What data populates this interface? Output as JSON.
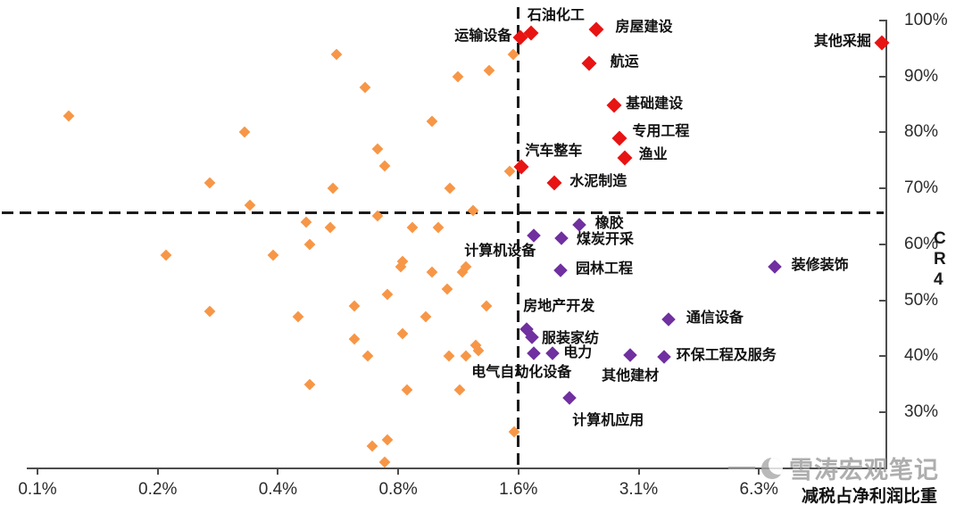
{
  "watermark": {
    "text": "雪涛宏观笔记"
  },
  "chart_data": {
    "type": "scatter",
    "title": "",
    "xlabel": "减税占净利润比重",
    "ylabel": "CR4",
    "x_scale": "log2",
    "x_ticks": [
      {
        "label": "0.1%",
        "value": 0.1
      },
      {
        "label": "0.2%",
        "value": 0.2
      },
      {
        "label": "0.4%",
        "value": 0.4
      },
      {
        "label": "0.8%",
        "value": 0.8
      },
      {
        "label": "1.6%",
        "value": 1.6
      },
      {
        "label": "3.1%",
        "value": 3.2
      },
      {
        "label": "6.3%",
        "value": 6.4
      }
    ],
    "y_ticks": [
      {
        "label": "100%",
        "value": 100
      },
      {
        "label": "90%",
        "value": 90
      },
      {
        "label": "80%",
        "value": 80
      },
      {
        "label": "70%",
        "value": 70
      },
      {
        "label": "60%",
        "value": 60
      },
      {
        "label": "50%",
        "value": 50
      },
      {
        "label": "40%",
        "value": 40
      },
      {
        "label": "30%",
        "value": 30
      }
    ],
    "ylim": [
      20,
      100
    ],
    "grid": false,
    "legend": "none",
    "reference_lines": {
      "vertical_at_x_pct": 1.6,
      "horizontal_at_y_pct": 65
    },
    "series": [
      {
        "name": "high-CR4-industries",
        "color": "#e81313",
        "marker": "diamond",
        "marker_size": 12,
        "points": [
          {
            "label": "运输设备",
            "x": 1.62,
            "y": 97.0,
            "lp": [
              -10,
              -10,
              "end"
            ]
          },
          {
            "label": "石油化工",
            "x": 1.72,
            "y": 97.8,
            "lp": [
              -4,
              -28,
              "start"
            ]
          },
          {
            "label": "房屋建设",
            "x": 2.5,
            "y": 98.4,
            "lp": [
              22,
              -11,
              "start"
            ]
          },
          {
            "label": "航运",
            "x": 2.4,
            "y": 92.3,
            "lp": [
              24,
              -10,
              "start"
            ]
          },
          {
            "label": "其他采掘",
            "x": 13.0,
            "y": 96.0,
            "lp": [
              -12,
              -10,
              "end"
            ]
          },
          {
            "label": "基础建设",
            "x": 2.78,
            "y": 84.9,
            "lp": [
              13,
              -10,
              "start"
            ]
          },
          {
            "label": "专用工程",
            "x": 2.87,
            "y": 79.0,
            "lp": [
              14,
              -16,
              "start"
            ]
          },
          {
            "label": "渔业",
            "x": 2.95,
            "y": 75.5,
            "lp": [
              16,
              -12,
              "start"
            ]
          },
          {
            "label": "汽车整车",
            "x": 1.63,
            "y": 73.9,
            "lp": [
              4,
              -26,
              "start"
            ]
          },
          {
            "label": "水泥制造",
            "x": 1.97,
            "y": 71.0,
            "lp": [
              17,
              -10,
              "start"
            ]
          }
        ]
      },
      {
        "name": "mid-CR4-industries",
        "color": "#7030a0",
        "marker": "diamond",
        "marker_size": 11,
        "points": [
          {
            "label": "橡胶",
            "x": 2.27,
            "y": 63.4,
            "lp": [
              18,
              -10,
              "start"
            ]
          },
          {
            "label": "计算机设备",
            "x": 1.75,
            "y": 61.6,
            "lp": [
              2,
              9,
              "end"
            ]
          },
          {
            "label": "煤炭开采",
            "x": 2.05,
            "y": 61.1,
            "lp": [
              17,
              -7,
              "start"
            ]
          },
          {
            "label": "园林工程",
            "x": 2.04,
            "y": 55.4,
            "lp": [
              17,
              -10,
              "start"
            ]
          },
          {
            "label": "装修装饰",
            "x": 7.0,
            "y": 56.0,
            "lp": [
              19,
              -10,
              "start"
            ]
          },
          {
            "label": "房地产开发",
            "x": 1.68,
            "y": 44.8,
            "lp": [
              -4,
              -34,
              "start"
            ]
          },
          {
            "label": "服装家纺",
            "x": 1.73,
            "y": 43.4,
            "lp": [
              11,
              -7,
              "start"
            ]
          },
          {
            "label": "通信设备",
            "x": 3.8,
            "y": 46.5,
            "lp": [
              20,
              -10,
              "start"
            ]
          },
          {
            "label": "电气自动化设备",
            "x": 1.75,
            "y": 40.5,
            "lp": [
              42,
              13,
              "end"
            ]
          },
          {
            "label": "电力",
            "x": 1.95,
            "y": 40.5,
            "lp": [
              12,
              -9,
              "start"
            ]
          },
          {
            "label": "其他建材",
            "x": 3.05,
            "y": 40.2,
            "lp": [
              -32,
              15,
              "start"
            ]
          },
          {
            "label": "环保工程及服务",
            "x": 3.7,
            "y": 39.8,
            "lp": [
              14,
              -10,
              "start"
            ]
          },
          {
            "label": "计算机应用",
            "x": 2.15,
            "y": 32.5,
            "lp": [
              3,
              17,
              "start"
            ]
          }
        ]
      },
      {
        "name": "other-industries",
        "color": "#f79646",
        "marker": "diamond",
        "marker_size": 9,
        "points": [
          [
            0.12,
            83
          ],
          [
            0.33,
            80
          ],
          [
            0.27,
            71
          ],
          [
            0.34,
            67
          ],
          [
            0.21,
            58
          ],
          [
            0.39,
            58
          ],
          [
            0.27,
            48
          ],
          [
            0.56,
            94
          ],
          [
            1.13,
            90
          ],
          [
            1.35,
            91
          ],
          [
            1.55,
            94
          ],
          [
            0.66,
            88
          ],
          [
            0.97,
            82
          ],
          [
            0.71,
            77
          ],
          [
            0.74,
            74
          ],
          [
            0.55,
            70
          ],
          [
            1.08,
            70
          ],
          [
            0.47,
            64
          ],
          [
            0.71,
            65
          ],
          [
            1.23,
            66
          ],
          [
            0.54,
            63
          ],
          [
            0.87,
            63
          ],
          [
            1.01,
            63
          ],
          [
            0.48,
            60
          ],
          [
            0.82,
            57
          ],
          [
            0.81,
            56
          ],
          [
            0.97,
            55
          ],
          [
            1.18,
            56
          ],
          [
            1.16,
            55
          ],
          [
            1.06,
            52
          ],
          [
            0.75,
            51
          ],
          [
            0.62,
            49
          ],
          [
            0.45,
            47
          ],
          [
            1.33,
            49
          ],
          [
            0.94,
            47
          ],
          [
            0.82,
            44
          ],
          [
            0.62,
            43
          ],
          [
            0.67,
            40
          ],
          [
            1.25,
            42
          ],
          [
            1.07,
            40
          ],
          [
            1.18,
            40
          ],
          [
            1.27,
            41
          ],
          [
            0.48,
            35
          ],
          [
            0.84,
            34
          ],
          [
            1.14,
            34
          ],
          [
            0.69,
            24
          ],
          [
            0.75,
            25
          ],
          [
            0.74,
            21
          ],
          [
            1.56,
            26.5
          ],
          [
            1.52,
            73
          ]
        ]
      }
    ]
  }
}
